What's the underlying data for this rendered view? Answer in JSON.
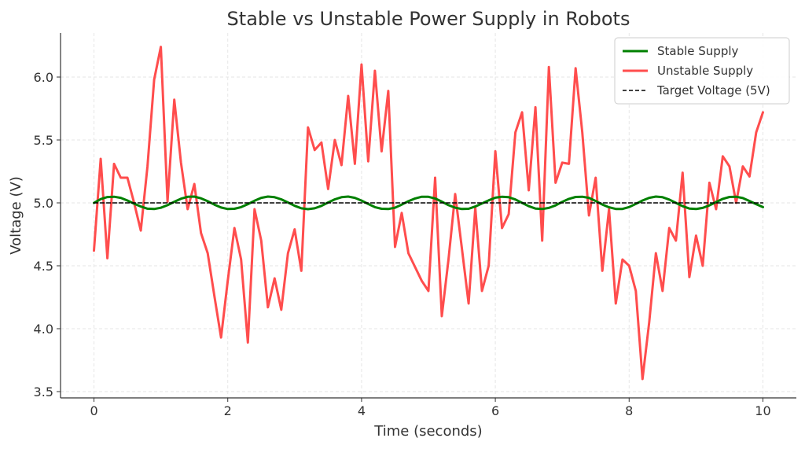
{
  "chart_data": {
    "type": "line",
    "title": "Stable vs Unstable Power Supply in Robots",
    "xlabel": "Time (seconds)",
    "ylabel": "Voltage (V)",
    "xlim": [
      -0.5,
      10.5
    ],
    "ylim": [
      3.45,
      6.35
    ],
    "xticks": [
      0,
      2,
      4,
      6,
      8,
      10
    ],
    "yticks": [
      3.5,
      4.0,
      4.5,
      5.0,
      5.5,
      6.0
    ],
    "xtick_labels": [
      "0",
      "2",
      "4",
      "6",
      "8",
      "10"
    ],
    "ytick_labels": [
      "3.5",
      "4.0",
      "4.5",
      "5.0",
      "5.5",
      "6.0"
    ],
    "grid": true,
    "legend_position": "top-right",
    "series": [
      {
        "name": "Stable Supply",
        "color": "#008000",
        "style": "solid",
        "x": [
          0.0,
          0.1,
          0.2,
          0.3,
          0.4,
          0.5,
          0.6,
          0.7,
          0.8,
          0.9,
          1.0,
          1.1,
          1.2,
          1.3,
          1.4,
          1.5,
          1.6,
          1.7,
          1.8,
          1.9,
          2.0,
          2.1,
          2.2,
          2.3,
          2.4,
          2.5,
          2.6,
          2.7,
          2.8,
          2.9,
          3.0,
          3.1,
          3.2,
          3.3,
          3.4,
          3.5,
          3.6,
          3.7,
          3.8,
          3.9,
          4.0,
          4.1,
          4.2,
          4.3,
          4.4,
          4.5,
          4.6,
          4.7,
          4.8,
          4.9,
          5.0,
          5.1,
          5.2,
          5.3,
          5.4,
          5.5,
          5.6,
          5.7,
          5.8,
          5.9,
          6.0,
          6.1,
          6.2,
          6.3,
          6.4,
          6.5,
          6.6,
          6.7,
          6.8,
          6.9,
          7.0,
          7.1,
          7.2,
          7.3,
          7.4,
          7.5,
          7.6,
          7.7,
          7.8,
          7.9,
          8.0,
          8.1,
          8.2,
          8.3,
          8.4,
          8.5,
          8.6,
          8.7,
          8.8,
          8.9,
          9.0,
          9.1,
          9.2,
          9.3,
          9.4,
          9.5,
          9.6,
          9.7,
          9.8,
          9.9,
          10.0
        ],
        "values": [
          5.0,
          5.03,
          5.046,
          5.049,
          5.04,
          5.019,
          4.994,
          4.971,
          4.954,
          4.951,
          4.961,
          4.982,
          5.009,
          5.033,
          5.048,
          5.05,
          5.036,
          5.013,
          4.986,
          4.963,
          4.951,
          4.953,
          4.966,
          4.99,
          5.017,
          5.04,
          5.05,
          5.045,
          5.028,
          5.003,
          4.977,
          4.957,
          4.95,
          4.957,
          4.976,
          5.003,
          5.028,
          5.045,
          5.05,
          5.04,
          5.018,
          4.991,
          4.966,
          4.953,
          4.951,
          4.962,
          4.986,
          5.013,
          5.035,
          5.049,
          5.048,
          5.035,
          5.01,
          4.982,
          4.962,
          4.951,
          4.953,
          4.971,
          4.995,
          5.02,
          5.041,
          5.049,
          5.045,
          5.027,
          5.0,
          4.974,
          4.955,
          4.951,
          4.96,
          4.98,
          5.008,
          5.032,
          5.047,
          5.049,
          5.04,
          5.015,
          4.987,
          4.965,
          4.952,
          4.952,
          4.967,
          4.992,
          5.019,
          5.04,
          5.05,
          5.045,
          5.026,
          5.0,
          4.974,
          4.955,
          4.951,
          4.96,
          4.98,
          5.006,
          5.032,
          5.047,
          5.049,
          5.038,
          5.015,
          4.99,
          4.966
        ]
      },
      {
        "name": "Unstable Supply",
        "color": "#ff4d4d",
        "style": "solid",
        "x": [
          0.0,
          0.1,
          0.2,
          0.3,
          0.4,
          0.5,
          0.6,
          0.7,
          0.8,
          0.9,
          1.0,
          1.1,
          1.2,
          1.3,
          1.4,
          1.5,
          1.6,
          1.7,
          1.8,
          1.9,
          2.0,
          2.1,
          2.2,
          2.3,
          2.4,
          2.5,
          2.6,
          2.7,
          2.8,
          2.9,
          3.0,
          3.1,
          3.2,
          3.3,
          3.4,
          3.5,
          3.6,
          3.7,
          3.8,
          3.9,
          4.0,
          4.1,
          4.2,
          4.3,
          4.4,
          4.5,
          4.6,
          4.7,
          4.8,
          4.9,
          5.0,
          5.1,
          5.2,
          5.3,
          5.4,
          5.5,
          5.6,
          5.7,
          5.8,
          5.9,
          6.0,
          6.1,
          6.2,
          6.3,
          6.4,
          6.5,
          6.6,
          6.7,
          6.8,
          6.9,
          7.0,
          7.1,
          7.2,
          7.3,
          7.4,
          7.5,
          7.6,
          7.7,
          7.8,
          7.9,
          8.0,
          8.1,
          8.2,
          8.3,
          8.4,
          8.5,
          8.6,
          8.7,
          8.8,
          8.9,
          9.0,
          9.1,
          9.2,
          9.3,
          9.4,
          9.5,
          9.6,
          9.7,
          9.8,
          9.9,
          10.0
        ],
        "values": [
          4.62,
          5.35,
          4.56,
          5.31,
          5.2,
          5.2,
          5.0,
          4.78,
          5.29,
          5.98,
          6.24,
          5.01,
          5.82,
          5.32,
          4.95,
          5.15,
          4.76,
          4.6,
          4.26,
          3.93,
          4.38,
          4.8,
          4.55,
          3.89,
          4.95,
          4.7,
          4.17,
          4.4,
          4.15,
          4.6,
          4.79,
          4.46,
          5.6,
          5.42,
          5.48,
          5.11,
          5.5,
          5.3,
          5.85,
          5.31,
          6.1,
          5.33,
          6.05,
          5.41,
          5.89,
          4.65,
          4.92,
          4.6,
          4.49,
          4.38,
          4.3,
          5.2,
          4.1,
          4.55,
          5.07,
          4.64,
          4.2,
          4.96,
          4.3,
          4.5,
          5.41,
          4.8,
          4.91,
          5.56,
          5.72,
          5.1,
          5.76,
          4.7,
          6.08,
          5.16,
          5.32,
          5.31,
          6.07,
          5.56,
          4.9,
          5.2,
          4.46,
          4.95,
          4.2,
          4.55,
          4.5,
          4.3,
          3.6,
          4.05,
          4.6,
          4.3,
          4.8,
          4.7,
          5.24,
          4.41,
          4.74,
          4.5,
          5.16,
          4.95,
          5.37,
          5.29,
          5.0,
          5.29,
          5.21,
          5.56,
          5.72
        ]
      },
      {
        "name": "Target Voltage (5V)",
        "color": "#000000",
        "style": "dashed",
        "x": [
          0.0,
          10.0
        ],
        "values": [
          5.0,
          5.0
        ]
      }
    ]
  }
}
